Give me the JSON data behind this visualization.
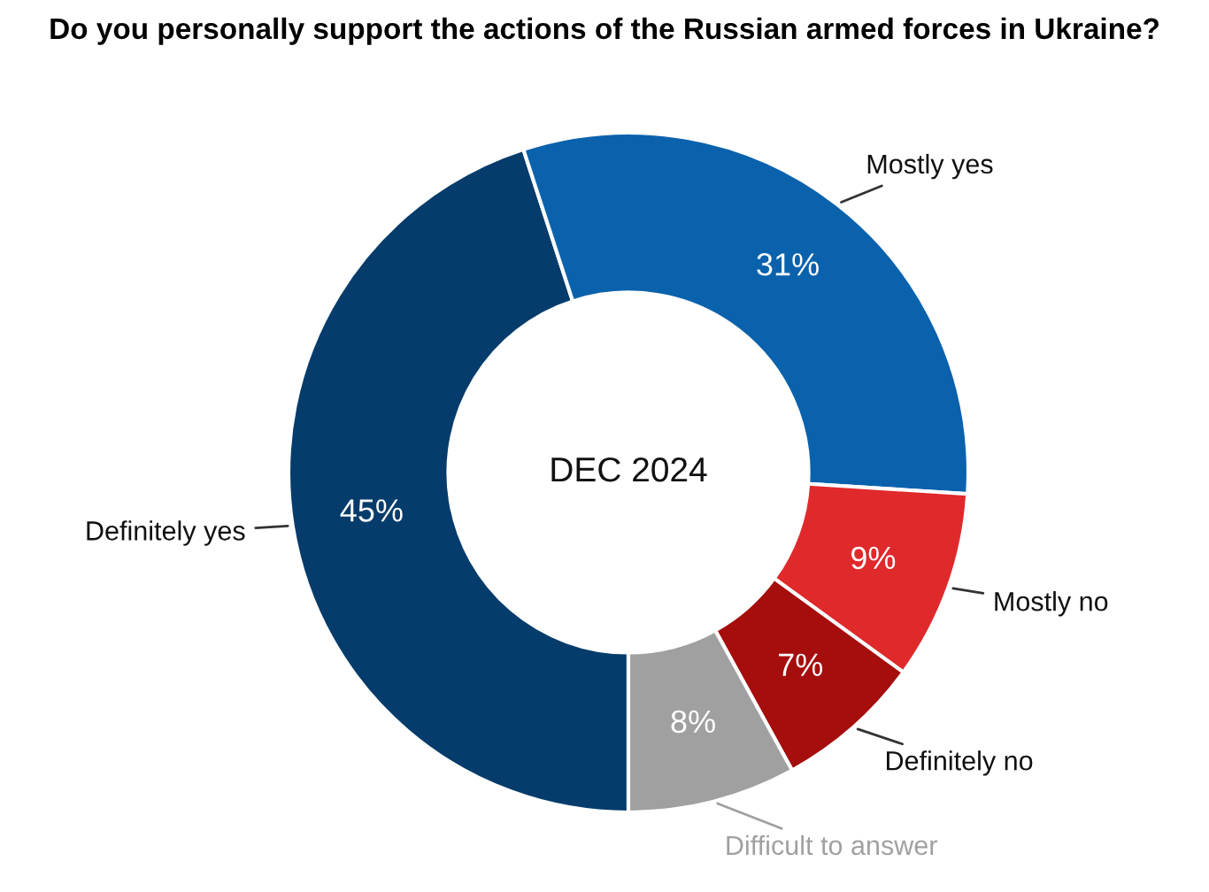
{
  "chart_data": {
    "type": "donut",
    "title": "Do you personally support the actions of the Russian armed forces in Ukraine?",
    "categories": [
      "Definitely yes",
      "Mostly yes",
      "Mostly no",
      "Definitely no",
      "Difficult to answer"
    ],
    "values": [
      45,
      31,
      9,
      7,
      8
    ],
    "value_labels": [
      "45%",
      "31%",
      "9%",
      "7%",
      "8%"
    ],
    "colors": [
      "#053c6b",
      "#0a62ad",
      "#e0292b",
      "#a60d0d",
      "#a0a0a0"
    ],
    "annotations": [
      "DEC 2024"
    ],
    "legend": false
  }
}
